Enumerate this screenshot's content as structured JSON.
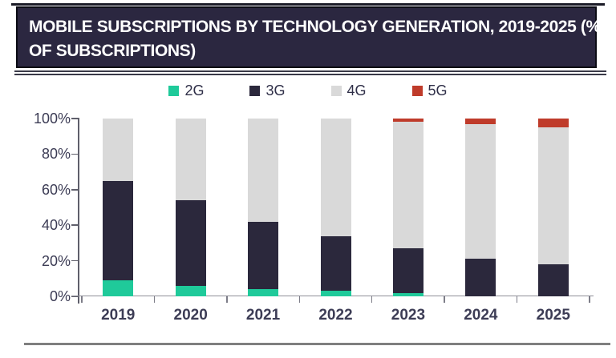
{
  "header": {
    "title_line1": "MOBILE SUBSCRIPTIONS BY TECHNOLOGY GENERATION, 2019-2025 (%",
    "title_line2": "OF SUBSCRIPTIONS)"
  },
  "chart_data": {
    "type": "bar",
    "stacked": true,
    "title": "MOBILE SUBSCRIPTIONS BY TECHNOLOGY GENERATION, 2019-2025 (% OF SUBSCRIPTIONS)",
    "categories": [
      "2019",
      "2020",
      "2021",
      "2022",
      "2023",
      "2024",
      "2025"
    ],
    "series": [
      {
        "name": "2G",
        "color": "#1fca9a",
        "values": [
          9,
          6,
          4,
          3,
          2,
          0,
          0
        ]
      },
      {
        "name": "3G",
        "color": "#2b283c",
        "values": [
          56,
          48,
          38,
          31,
          25,
          21,
          18
        ]
      },
      {
        "name": "4G",
        "color": "#d9d9d9",
        "values": [
          35,
          46,
          58,
          66,
          71,
          76,
          77
        ]
      },
      {
        "name": "5G",
        "color": "#bf3b2a",
        "values": [
          0,
          0,
          0,
          0,
          2,
          3,
          5
        ]
      }
    ],
    "ylabel": "",
    "xlabel": "",
    "ylim": [
      0,
      100
    ],
    "y_ticks": [
      "0%",
      "20%",
      "40%",
      "60%",
      "80%",
      "100%"
    ],
    "grid": false,
    "legend_position": "top"
  }
}
